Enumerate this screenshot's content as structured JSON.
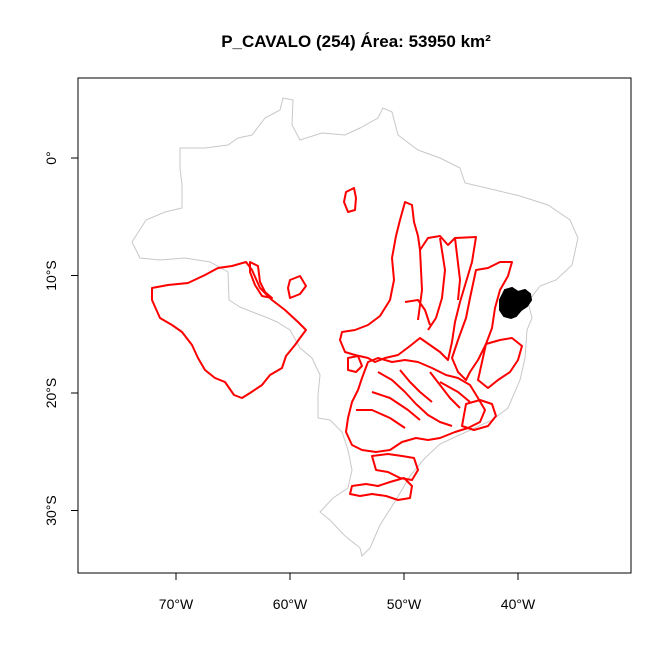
{
  "title": "P_CAVALO (254) Área: 53950 km²",
  "axes": {
    "x_ticks": [
      {
        "lon": -70,
        "label": "70°W"
      },
      {
        "lon": -60,
        "label": "60°W"
      },
      {
        "lon": -50,
        "label": "50°W"
      },
      {
        "lon": -40,
        "label": "40°W"
      }
    ],
    "y_ticks": [
      {
        "lat": 0,
        "label": "0°"
      },
      {
        "lat": -10,
        "label": "10°S"
      },
      {
        "lat": -20,
        "label": "20°S"
      },
      {
        "lat": -30,
        "label": "30°S"
      }
    ]
  },
  "colors": {
    "country_outline": "#c8c8c8",
    "basins": "#ff0000",
    "highlight": "#000000"
  },
  "chart_data": {
    "type": "map",
    "title": "P_CAVALO (254) Área: 53950 km²",
    "xlim": [
      -78.6,
      -30.4
    ],
    "ylim": [
      -35.3,
      6.8
    ],
    "grid": false,
    "highlighted_basin": "P_CAVALO",
    "highlighted_code": 254,
    "highlighted_area_km2": 53950
  }
}
